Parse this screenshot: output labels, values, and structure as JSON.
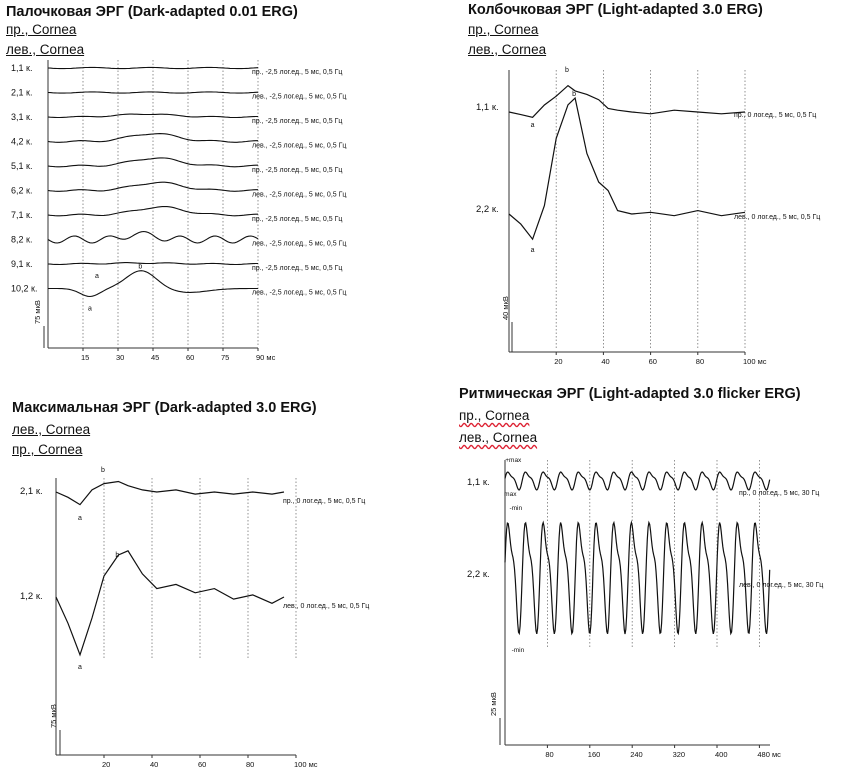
{
  "chart_data": [
    {
      "type": "line",
      "title": "Палочковая ЭРГ (Dark-adapted 0.01 ERG)",
      "eyes": [
        "пр., Cornea",
        "лев., Cornea"
      ],
      "x_ticks": [
        "15",
        "30",
        "45",
        "60",
        "75",
        "90 мс"
      ],
      "y_scale_label": "75 мкВ",
      "xlim": [
        0,
        90
      ],
      "grid": "vertical dotted",
      "series": [
        {
          "name": "1,1 к.",
          "params": "пр., -2,5 лог.ед., 5 мс, 0,5 Гц",
          "wave": "flat"
        },
        {
          "name": "2,1 к.",
          "params": "лев., -2,5 лог.ед., 5 мс, 0,5 Гц",
          "wave": "flat"
        },
        {
          "name": "3,1 к.",
          "params": "пр., -2,5 лог.ед., 5 мс, 0,5 Гц",
          "wave": "small"
        },
        {
          "name": "4,2 к.",
          "params": "лев., -2,5 лог.ед., 5 мс, 0,5 Гц",
          "wave": "hump"
        },
        {
          "name": "5,1 к.",
          "params": "пр., -2,5 лог.ед., 5 мс, 0,5 Гц",
          "wave": "hump"
        },
        {
          "name": "6,2 к.",
          "params": "лев., -2,5 лог.ед., 5 мс, 0,5 Гц",
          "wave": "hump"
        },
        {
          "name": "7,1 к.",
          "params": "пр., -2,5 лог.ед., 5 мс, 0,5 Гц",
          "wave": "hump"
        },
        {
          "name": "8,2 к.",
          "params": "лев., -2,5 лог.ед., 5 мс, 0,5 Гц",
          "wave": "noisy"
        },
        {
          "name": "9,1 к.",
          "params": "пр., -2,5 лог.ед., 5 мс, 0,5 Гц",
          "wave": "flat_marked"
        },
        {
          "name": "10,2 к.",
          "params": "лев., -2,5 лог.ед., 5 мс, 0,5 Гц",
          "wave": "ab"
        }
      ],
      "markers": [
        "a",
        "b"
      ]
    },
    {
      "type": "line",
      "title": "Колбочковая ЭРГ (Light-adapted 3.0 ERG)",
      "eyes": [
        "пр., Cornea",
        "лев., Cornea"
      ],
      "x_ticks": [
        "20",
        "40",
        "60",
        "80",
        "100 мс"
      ],
      "y_scale_label": "40 мкВ",
      "xlim": [
        0,
        100
      ],
      "grid": "vertical dotted",
      "series": [
        {
          "name": "1,1 к.",
          "params": "пр., 0 лог.ед., 5 мс, 0,5 Гц"
        },
        {
          "name": "2,2 к.",
          "params": "лев., 0 лог.ед., 5 мс, 0,5 Гц"
        }
      ],
      "markers": [
        "a",
        "b"
      ],
      "points": [
        {
          "x": 0,
          "y1": 0,
          "y2": 0
        },
        {
          "x": 5,
          "y1": -3,
          "y2": -12
        },
        {
          "x": 10,
          "y1": -6,
          "y2": -30
        },
        {
          "x": 15,
          "y1": 8,
          "y2": 10
        },
        {
          "x": 20,
          "y1": 18,
          "y2": 90
        },
        {
          "x": 25,
          "y1": 30,
          "y2": 130
        },
        {
          "x": 28,
          "y1": 24,
          "y2": 138
        },
        {
          "x": 33,
          "y1": 20,
          "y2": 72
        },
        {
          "x": 38,
          "y1": 14,
          "y2": 38
        },
        {
          "x": 42,
          "y1": 4,
          "y2": 28
        },
        {
          "x": 46,
          "y1": 2,
          "y2": 4
        },
        {
          "x": 52,
          "y1": 0,
          "y2": 0
        },
        {
          "x": 60,
          "y1": -2,
          "y2": 2
        },
        {
          "x": 70,
          "y1": 2,
          "y2": -2
        },
        {
          "x": 80,
          "y1": 0,
          "y2": 4
        },
        {
          "x": 90,
          "y1": -2,
          "y2": -2
        },
        {
          "x": 100,
          "y1": 0,
          "y2": 2
        }
      ]
    },
    {
      "type": "line",
      "title": "Максимальная ЭРГ (Dark-adapted 3.0 ERG)",
      "eyes": [
        "лев., Cornea",
        "пр., Cornea"
      ],
      "x_ticks": [
        "20",
        "40",
        "60",
        "80",
        "100 мс"
      ],
      "y_scale_label": "75 мкВ",
      "xlim": [
        0,
        100
      ],
      "grid": "vertical dotted",
      "series": [
        {
          "name": "2,1 к.",
          "params": "пр., 0 лог.ед., 5 мс, 0,5 Гц"
        },
        {
          "name": "1,2 к.",
          "params": "лев., 0 лог.ед., 5 мс, 0,5 Гц"
        }
      ],
      "markers": [
        "a",
        "b"
      ],
      "points": [
        {
          "x": 0,
          "y1": 0,
          "y2": 0
        },
        {
          "x": 5,
          "y1": -5,
          "y2": -25
        },
        {
          "x": 10,
          "y1": -12,
          "y2": -55
        },
        {
          "x": 15,
          "y1": 2,
          "y2": -20
        },
        {
          "x": 20,
          "y1": 8,
          "y2": 20
        },
        {
          "x": 26,
          "y1": 10,
          "y2": 40
        },
        {
          "x": 30,
          "y1": 6,
          "y2": 44
        },
        {
          "x": 36,
          "y1": 2,
          "y2": 22
        },
        {
          "x": 42,
          "y1": 0,
          "y2": 8
        },
        {
          "x": 50,
          "y1": 2,
          "y2": 12
        },
        {
          "x": 58,
          "y1": -2,
          "y2": 4
        },
        {
          "x": 66,
          "y1": 0,
          "y2": 8
        },
        {
          "x": 74,
          "y1": -2,
          "y2": -2
        },
        {
          "x": 82,
          "y1": 0,
          "y2": 2
        },
        {
          "x": 90,
          "y1": -2,
          "y2": -6
        },
        {
          "x": 95,
          "y1": 0,
          "y2": 0
        }
      ]
    },
    {
      "type": "line",
      "title": "Ритмическая ЭРГ (Light-adapted 3.0 flicker ERG)",
      "eyes": [
        "пр., Cornea",
        "лев., Cornea"
      ],
      "x_ticks": [
        "80",
        "160",
        "240",
        "320",
        "400",
        "480 мс"
      ],
      "y_scale_label": "25 мкВ",
      "xlim": [
        0,
        500
      ],
      "grid": "vertical dotted",
      "series": [
        {
          "name": "1,1 к.",
          "params": "пр., 0 лог.ед., 5 мс, 30 Гц",
          "frequency_hz": 30
        },
        {
          "name": "2,2 к.",
          "params": "лев., 0 лог.ед., 5 мс, 30 Гц",
          "frequency_hz": 30
        }
      ],
      "markers": [
        "+max",
        "max",
        "-min",
        "-min"
      ]
    }
  ]
}
